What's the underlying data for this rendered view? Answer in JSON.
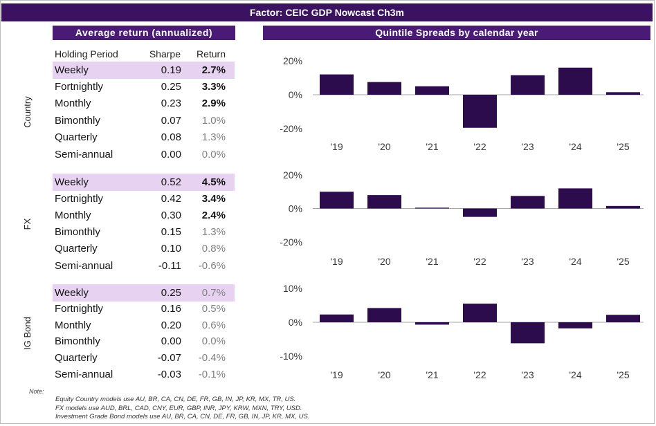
{
  "header": {
    "title": "Factor: CEIC GDP Nowcast Ch3m"
  },
  "returns_panel": {
    "title": "Average return (annualized)",
    "columns": {
      "period": "Holding Period",
      "sharpe": "Sharpe",
      "return": "Return"
    },
    "groups": [
      {
        "label": "Country",
        "rows": [
          {
            "period": "Weekly",
            "sharpe": "0.19",
            "return": "2.7%",
            "bold": true,
            "highlight": true
          },
          {
            "period": "Fortnightly",
            "sharpe": "0.25",
            "return": "3.3%",
            "bold": true,
            "highlight": false
          },
          {
            "period": "Monthly",
            "sharpe": "0.23",
            "return": "2.9%",
            "bold": true,
            "highlight": false
          },
          {
            "period": "Bimonthly",
            "sharpe": "0.07",
            "return": "1.0%",
            "bold": false,
            "highlight": false
          },
          {
            "period": "Quarterly",
            "sharpe": "0.08",
            "return": "1.3%",
            "bold": false,
            "highlight": false
          },
          {
            "period": "Semi-annual",
            "sharpe": "0.00",
            "return": "0.0%",
            "bold": false,
            "highlight": false
          }
        ]
      },
      {
        "label": "FX",
        "rows": [
          {
            "period": "Weekly",
            "sharpe": "0.52",
            "return": "4.5%",
            "bold": true,
            "highlight": true
          },
          {
            "period": "Fortnightly",
            "sharpe": "0.42",
            "return": "3.4%",
            "bold": true,
            "highlight": false
          },
          {
            "period": "Monthly",
            "sharpe": "0.30",
            "return": "2.4%",
            "bold": true,
            "highlight": false
          },
          {
            "period": "Bimonthly",
            "sharpe": "0.15",
            "return": "1.3%",
            "bold": false,
            "highlight": false
          },
          {
            "period": "Quarterly",
            "sharpe": "0.10",
            "return": "0.8%",
            "bold": false,
            "highlight": false
          },
          {
            "period": "Semi-annual",
            "sharpe": "-0.11",
            "return": "-0.6%",
            "bold": false,
            "highlight": false
          }
        ]
      },
      {
        "label": "IG Bond",
        "rows": [
          {
            "period": "Weekly",
            "sharpe": "0.25",
            "return": "0.7%",
            "bold": false,
            "highlight": true
          },
          {
            "period": "Fortnightly",
            "sharpe": "0.16",
            "return": "0.5%",
            "bold": false,
            "highlight": false
          },
          {
            "period": "Monthly",
            "sharpe": "0.20",
            "return": "0.6%",
            "bold": false,
            "highlight": false
          },
          {
            "period": "Bimonthly",
            "sharpe": "0.00",
            "return": "0.0%",
            "bold": false,
            "highlight": false
          },
          {
            "period": "Quarterly",
            "sharpe": "-0.07",
            "return": "-0.4%",
            "bold": false,
            "highlight": false
          },
          {
            "period": "Semi-annual",
            "sharpe": "-0.03",
            "return": "-0.1%",
            "bold": false,
            "highlight": false
          }
        ]
      }
    ]
  },
  "spreads_panel": {
    "title": "Quintile Spreads by calendar year"
  },
  "chart_data": [
    {
      "type": "bar",
      "categories": [
        "'19",
        "'20",
        "'21",
        "'22",
        "'23",
        "'24",
        "'25"
      ],
      "values": [
        12,
        7.5,
        5,
        -19.5,
        11.5,
        16,
        1.5
      ],
      "unit": "%",
      "ylim": [
        -20,
        20
      ],
      "ytick_values": [
        20,
        0,
        -20
      ],
      "yticks": [
        "20%",
        "0%",
        "-20%"
      ],
      "grid": false
    },
    {
      "type": "bar",
      "categories": [
        "'19",
        "'20",
        "'21",
        "'22",
        "'23",
        "'24",
        "'25"
      ],
      "values": [
        10,
        8,
        0.5,
        -5,
        7.5,
        12,
        1.5
      ],
      "unit": "%",
      "ylim": [
        -20,
        20
      ],
      "ytick_values": [
        20,
        0,
        -20
      ],
      "yticks": [
        "20%",
        "0%",
        "-20%"
      ],
      "grid": false
    },
    {
      "type": "bar",
      "categories": [
        "'19",
        "'20",
        "'21",
        "'22",
        "'23",
        "'24",
        "'25"
      ],
      "values": [
        2.3,
        4.2,
        -0.7,
        5.5,
        -6.2,
        -1.8,
        2.2
      ],
      "unit": "%",
      "ylim": [
        -10,
        10
      ],
      "ytick_values": [
        10,
        0,
        -10
      ],
      "yticks": [
        "10%",
        "0%",
        "-10%"
      ],
      "grid": false
    }
  ],
  "note": {
    "label": "Note:",
    "lines": [
      "Equity Country models use AU, BR, CA, CN, DE, FR, GB, IN, JP, KR, MX, TR, US.",
      "FX models use AUD, BRL, CAD, CNY, EUR, GBP, INR, JPY, KRW, MXN, TRY, USD.",
      "Investment Grade Bond models use AU, BR, CA, CN, DE, FR, GB, IN, JP, KR, MX, US."
    ]
  },
  "colors": {
    "title_bar": "#3b1161",
    "section_bar": "#4a1b76",
    "bar": "#2d0c4e",
    "highlight": "#e8d2f1",
    "muted_text": "#808080",
    "axis_line": "#a6a6a6"
  }
}
